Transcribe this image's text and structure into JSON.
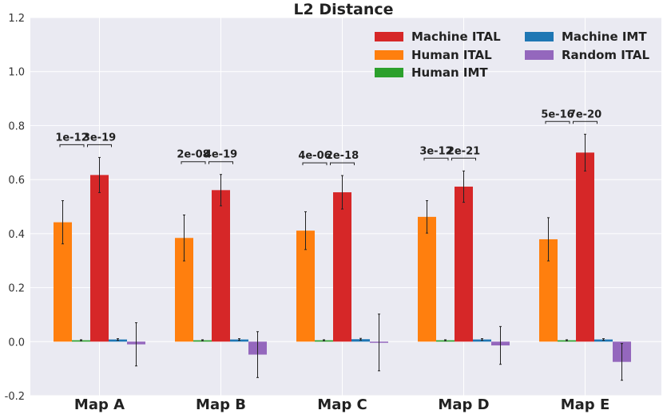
{
  "chart_data": {
    "type": "bar",
    "title": "L2 Distance",
    "xlabel": "",
    "ylabel": "",
    "ylim": [
      -0.2,
      1.2
    ],
    "yticks": [
      "-0.2",
      "0.0",
      "0.2",
      "0.4",
      "0.6",
      "0.8",
      "1.0",
      "1.2"
    ],
    "grid": true,
    "legend_position": "top-right",
    "categories": [
      "Map A",
      "Map B",
      "Map C",
      "Map D",
      "Map E"
    ],
    "series": [
      {
        "name": "Human ITAL",
        "color": "#ff7f0e",
        "values": [
          0.442,
          0.384,
          0.411,
          0.462,
          0.379
        ],
        "errors": [
          0.08,
          0.085,
          0.07,
          0.06,
          0.08
        ]
      },
      {
        "name": "Human IMT",
        "color": "#2ca02c",
        "values": [
          0.005,
          0.005,
          0.005,
          0.005,
          0.005
        ],
        "errors": [
          0.002,
          0.002,
          0.002,
          0.002,
          0.002
        ]
      },
      {
        "name": "Machine ITAL",
        "color": "#d62728",
        "values": [
          0.617,
          0.561,
          0.553,
          0.574,
          0.7
        ],
        "errors": [
          0.065,
          0.058,
          0.062,
          0.058,
          0.068
        ]
      },
      {
        "name": "Machine IMT",
        "color": "#1f77b4",
        "values": [
          0.008,
          0.008,
          0.009,
          0.008,
          0.008
        ],
        "errors": [
          0.003,
          0.003,
          0.003,
          0.003,
          0.003
        ]
      },
      {
        "name": "Random ITAL",
        "color": "#9467bd",
        "values": [
          -0.01,
          -0.048,
          -0.003,
          -0.014,
          -0.075
        ],
        "errors": [
          0.08,
          0.085,
          0.105,
          0.07,
          0.068
        ]
      }
    ],
    "legend_order": [
      "Machine ITAL",
      "Machine IMT",
      "Human ITAL",
      "Random ITAL",
      "Human IMT"
    ],
    "annotations": [
      {
        "category": "Map A",
        "left": "1e-12",
        "right": "3e-19"
      },
      {
        "category": "Map B",
        "left": "2e-08",
        "right": "4e-19"
      },
      {
        "category": "Map C",
        "left": "4e-06",
        "right": "2e-18"
      },
      {
        "category": "Map D",
        "left": "3e-12",
        "right": "2e-21"
      },
      {
        "category": "Map E",
        "left": "5e-16",
        "right": "7e-20"
      }
    ]
  }
}
